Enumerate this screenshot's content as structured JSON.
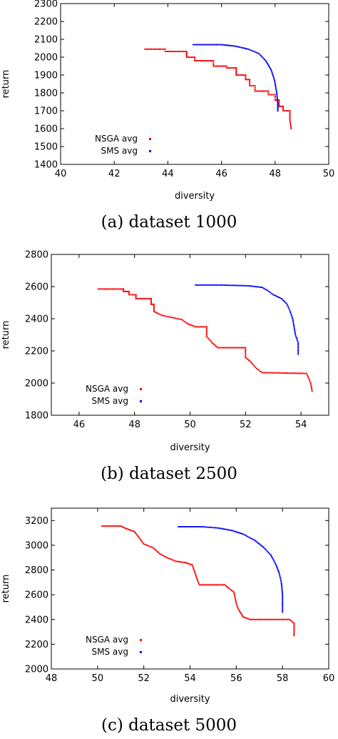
{
  "chart_data": [
    {
      "type": "scatter",
      "caption": "(a) dataset 1000",
      "xlabel": "diversity",
      "ylabel": "return",
      "xlim": [
        40,
        50
      ],
      "ylim": [
        1400,
        2300
      ],
      "xticks": [
        40,
        42,
        44,
        46,
        48,
        50
      ],
      "yticks": [
        1400,
        1500,
        1600,
        1700,
        1800,
        1900,
        2000,
        2100,
        2200,
        2300
      ],
      "grid": false,
      "legend": "bottom-left",
      "series": [
        {
          "name": "NSGA avg",
          "color": "#ff0000",
          "points": [
            [
              43.15,
              2045
            ],
            [
              43.9,
              2045
            ],
            [
              43.9,
              2032
            ],
            [
              44.7,
              2032
            ],
            [
              44.7,
              2000
            ],
            [
              45.0,
              2000
            ],
            [
              45.0,
              1980
            ],
            [
              45.7,
              1980
            ],
            [
              45.7,
              1950
            ],
            [
              46.2,
              1950
            ],
            [
              46.2,
              1940
            ],
            [
              46.55,
              1940
            ],
            [
              46.55,
              1900
            ],
            [
              46.9,
              1900
            ],
            [
              46.9,
              1875
            ],
            [
              47.05,
              1875
            ],
            [
              47.05,
              1840
            ],
            [
              47.25,
              1840
            ],
            [
              47.25,
              1810
            ],
            [
              47.75,
              1810
            ],
            [
              47.75,
              1790
            ],
            [
              48.0,
              1790
            ],
            [
              48.0,
              1760
            ],
            [
              48.15,
              1760
            ],
            [
              48.15,
              1725
            ],
            [
              48.3,
              1725
            ],
            [
              48.3,
              1700
            ],
            [
              48.55,
              1700
            ],
            [
              48.55,
              1650
            ],
            [
              48.6,
              1600
            ]
          ]
        },
        {
          "name": "SMS avg",
          "color": "#0000ff",
          "points": [
            [
              44.95,
              2070
            ],
            [
              46.0,
              2070
            ],
            [
              46.5,
              2062
            ],
            [
              47.0,
              2045
            ],
            [
              47.4,
              2020
            ],
            [
              47.65,
              1980
            ],
            [
              47.85,
              1930
            ],
            [
              47.98,
              1870
            ],
            [
              48.06,
              1800
            ],
            [
              48.1,
              1740
            ],
            [
              48.1,
              1700
            ]
          ]
        }
      ]
    },
    {
      "type": "scatter",
      "caption": "(b) dataset 2500",
      "xlabel": "diversity",
      "ylabel": "return",
      "xlim": [
        45,
        55
      ],
      "ylim": [
        1800,
        2800
      ],
      "xticks": [
        46,
        48,
        50,
        52,
        54
      ],
      "yticks": [
        1800,
        2000,
        2200,
        2400,
        2600,
        2800
      ],
      "grid": false,
      "legend": "bottom-left",
      "series": [
        {
          "name": "NSGA avg",
          "color": "#ff0000",
          "points": [
            [
              46.7,
              2585
            ],
            [
              47.6,
              2585
            ],
            [
              47.6,
              2570
            ],
            [
              47.8,
              2570
            ],
            [
              47.8,
              2550
            ],
            [
              48.05,
              2550
            ],
            [
              48.05,
              2525
            ],
            [
              48.6,
              2525
            ],
            [
              48.6,
              2490
            ],
            [
              48.7,
              2490
            ],
            [
              48.7,
              2445
            ],
            [
              49.0,
              2420
            ],
            [
              49.3,
              2410
            ],
            [
              49.7,
              2395
            ],
            [
              49.9,
              2370
            ],
            [
              50.2,
              2350
            ],
            [
              50.6,
              2350
            ],
            [
              50.6,
              2290
            ],
            [
              50.8,
              2250
            ],
            [
              51.0,
              2220
            ],
            [
              52.0,
              2220
            ],
            [
              52.0,
              2160
            ],
            [
              52.2,
              2130
            ],
            [
              52.4,
              2090
            ],
            [
              52.6,
              2065
            ],
            [
              54.2,
              2060
            ],
            [
              54.25,
              2040
            ],
            [
              54.35,
              2000
            ],
            [
              54.4,
              1950
            ]
          ]
        },
        {
          "name": "SMS avg",
          "color": "#0000ff",
          "points": [
            [
              50.2,
              2610
            ],
            [
              51.0,
              2610
            ],
            [
              52.1,
              2605
            ],
            [
              52.6,
              2595
            ],
            [
              52.8,
              2575
            ],
            [
              53.0,
              2550
            ],
            [
              53.3,
              2525
            ],
            [
              53.5,
              2490
            ],
            [
              53.6,
              2450
            ],
            [
              53.7,
              2400
            ],
            [
              53.75,
              2350
            ],
            [
              53.8,
              2300
            ],
            [
              53.9,
              2250
            ],
            [
              53.9,
              2180
            ]
          ]
        }
      ]
    },
    {
      "type": "scatter",
      "caption": "(c) dataset 5000",
      "xlabel": "diversity",
      "ylabel": "return",
      "xlim": [
        48,
        60
      ],
      "ylim": [
        2000,
        3300
      ],
      "xticks": [
        48,
        50,
        52,
        54,
        56,
        58,
        60
      ],
      "yticks": [
        2000,
        2200,
        2400,
        2600,
        2800,
        3000,
        3200
      ],
      "grid": false,
      "legend": "bottom-left",
      "series": [
        {
          "name": "NSGA avg",
          "color": "#ff0000",
          "points": [
            [
              50.2,
              3155
            ],
            [
              51.0,
              3155
            ],
            [
              51.3,
              3130
            ],
            [
              51.6,
              3110
            ],
            [
              51.8,
              3060
            ],
            [
              52.0,
              3010
            ],
            [
              52.4,
              2980
            ],
            [
              52.7,
              2930
            ],
            [
              53.0,
              2900
            ],
            [
              53.4,
              2870
            ],
            [
              53.8,
              2860
            ],
            [
              54.1,
              2840
            ],
            [
              54.3,
              2730
            ],
            [
              54.4,
              2680
            ],
            [
              55.5,
              2680
            ],
            [
              55.7,
              2650
            ],
            [
              55.9,
              2620
            ],
            [
              56.0,
              2530
            ],
            [
              56.1,
              2480
            ],
            [
              56.3,
              2420
            ],
            [
              56.6,
              2400
            ],
            [
              58.3,
              2400
            ],
            [
              58.5,
              2370
            ],
            [
              58.5,
              2270
            ]
          ]
        },
        {
          "name": "SMS avg",
          "color": "#0000ff",
          "points": [
            [
              53.5,
              3150
            ],
            [
              54.5,
              3150
            ],
            [
              55.2,
              3140
            ],
            [
              55.8,
              3120
            ],
            [
              56.3,
              3090
            ],
            [
              56.8,
              3040
            ],
            [
              57.2,
              2980
            ],
            [
              57.5,
              2920
            ],
            [
              57.7,
              2850
            ],
            [
              57.85,
              2780
            ],
            [
              57.95,
              2700
            ],
            [
              58.0,
              2600
            ],
            [
              58.0,
              2500
            ],
            [
              58.0,
              2460
            ]
          ]
        }
      ]
    }
  ]
}
